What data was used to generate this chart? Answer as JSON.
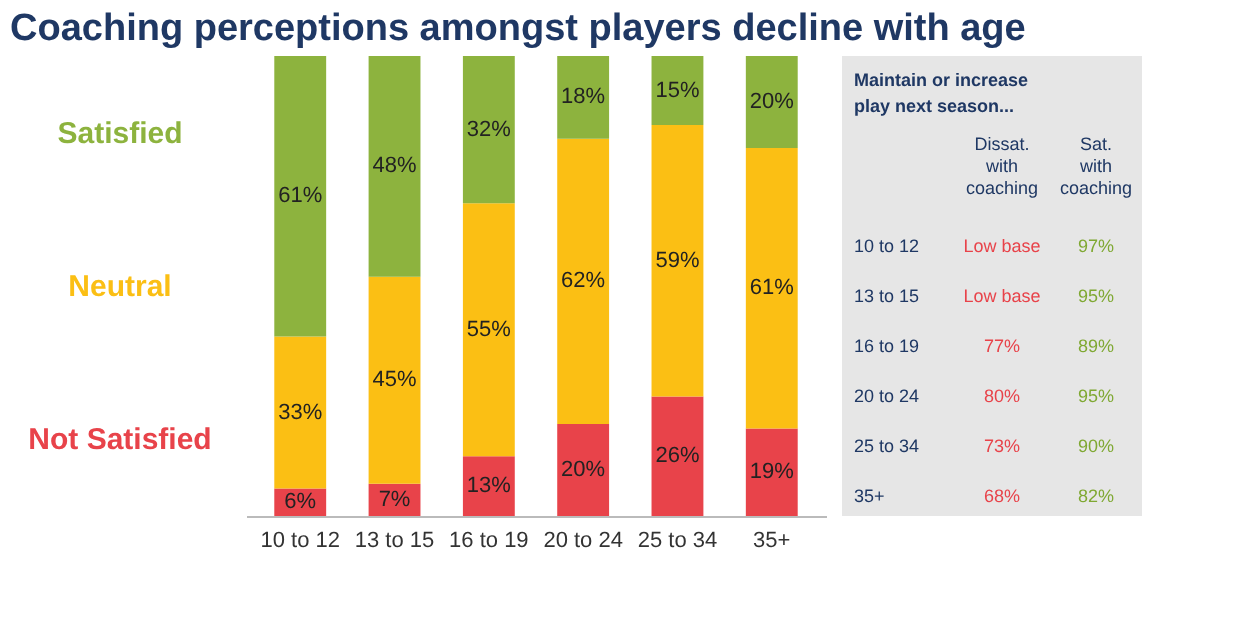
{
  "chart_data": [
    {
      "type": "bar",
      "title": "Coaching perceptions amongst players decline with age",
      "stacked": true,
      "legend": "left",
      "ylim": [
        0,
        100
      ],
      "categories": [
        "10 to 12",
        "13 to 15",
        "16 to 19",
        "20 to 24",
        "25 to 34",
        "35+"
      ],
      "series": [
        {
          "name": "Not Satisfied",
          "color": "#e8434a",
          "values": [
            6,
            7,
            13,
            20,
            26,
            19
          ],
          "value_labels": [
            "6%",
            "7%",
            "13%",
            "20%",
            "26%",
            "19%"
          ]
        },
        {
          "name": "Neutral",
          "color": "#fbbf14",
          "values": [
            33,
            45,
            55,
            62,
            59,
            61
          ],
          "value_labels": [
            "33%",
            "45%",
            "55%",
            "62%",
            "59%",
            "61%"
          ]
        },
        {
          "name": "Satisfied",
          "color": "#8db33e",
          "values": [
            61,
            48,
            32,
            18,
            15,
            20
          ],
          "value_labels": [
            "61%",
            "48%",
            "32%",
            "18%",
            "15%",
            "20%"
          ]
        }
      ]
    },
    {
      "type": "other",
      "title": "Maintain or increase play next season...",
      "y_categories": [
        "10 to 12",
        "13 to 15",
        "16 to 19",
        "20 to 24",
        "25 to 34",
        "35+"
      ],
      "categories": [
        "Dissat. with coaching",
        "Sat. with coaching"
      ],
      "cell_labels": [
        [
          "Low base",
          "97%"
        ],
        [
          "Low base",
          "95%"
        ],
        [
          "77%",
          "89%"
        ],
        [
          "80%",
          "95%"
        ],
        [
          "73%",
          "90%"
        ],
        [
          "68%",
          "82%"
        ]
      ]
    }
  ]
}
